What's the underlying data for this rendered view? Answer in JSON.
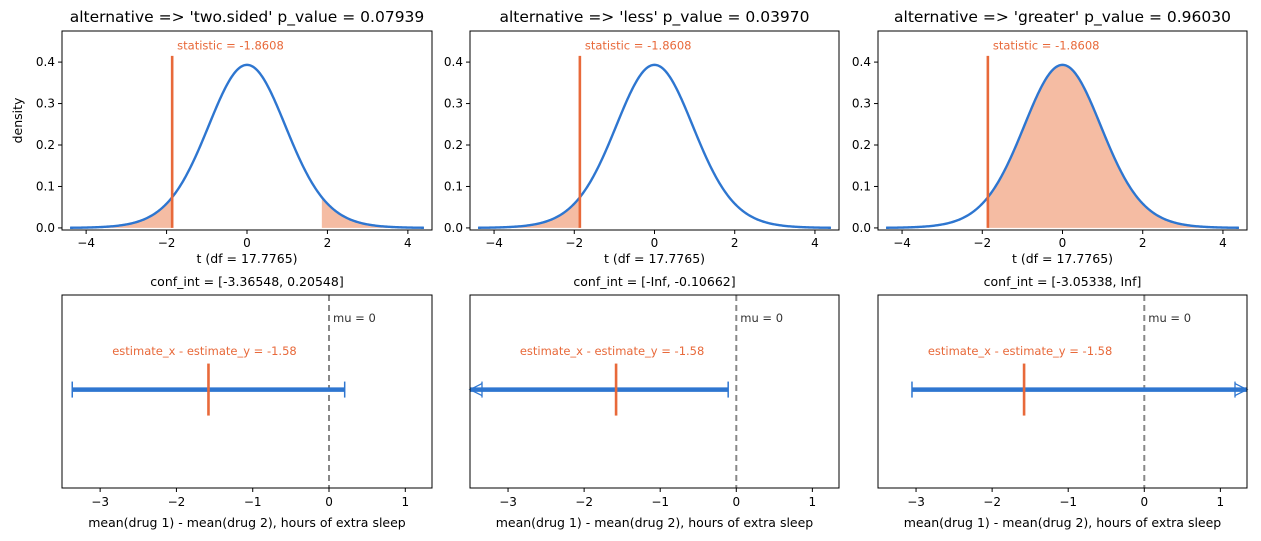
{
  "figure": {
    "colors": {
      "curve": "#2e76d0",
      "statistic": "#e8693a",
      "fill": "#f5bca3",
      "ci": "#2e76d0",
      "mu": "#888888",
      "axes": "#000000"
    }
  },
  "chart_data": [
    {
      "type": "line",
      "title": "alternative => 'two.sided'   p_value = 0.07939",
      "xlabel": "t   (df = 17.7765)",
      "ylabel": "density",
      "alternative": "two.sided",
      "df": 17.7765,
      "statistic": -1.8608,
      "statistic_label": "statistic = -1.8608",
      "xlim": [
        -4.6,
        4.6
      ],
      "ylim": [
        -0.005,
        0.475
      ],
      "curve_range": [
        -4.4,
        4.4
      ],
      "xticks": [
        -4,
        -2,
        0,
        2,
        4
      ],
      "yticks": [
        0.0,
        0.1,
        0.2,
        0.3,
        0.4
      ],
      "x_tick_labels": [
        "−4",
        "−2",
        "0",
        "2",
        "4"
      ],
      "y_tick_labels": [
        "0.0",
        "0.1",
        "0.2",
        "0.3",
        "0.4"
      ],
      "shade": [
        [
          -4.4,
          -1.8608
        ],
        [
          1.8608,
          4.4
        ]
      ]
    },
    {
      "type": "line",
      "title": "alternative => 'less'   p_value = 0.03970",
      "xlabel": "t   (df = 17.7765)",
      "ylabel": "",
      "alternative": "less",
      "df": 17.7765,
      "statistic": -1.8608,
      "statistic_label": "statistic = -1.8608",
      "xlim": [
        -4.6,
        4.6
      ],
      "ylim": [
        -0.005,
        0.475
      ],
      "curve_range": [
        -4.4,
        4.4
      ],
      "xticks": [
        -4,
        -2,
        0,
        2,
        4
      ],
      "yticks": [
        0.0,
        0.1,
        0.2,
        0.3,
        0.4
      ],
      "x_tick_labels": [
        "−4",
        "−2",
        "0",
        "2",
        "4"
      ],
      "y_tick_labels": [
        "0.0",
        "0.1",
        "0.2",
        "0.3",
        "0.4"
      ],
      "shade": [
        [
          -4.4,
          -1.8608
        ]
      ]
    },
    {
      "type": "line",
      "title": "alternative => 'greater'   p_value = 0.96030",
      "xlabel": "t   (df = 17.7765)",
      "ylabel": "",
      "alternative": "greater",
      "df": 17.7765,
      "statistic": -1.8608,
      "statistic_label": "statistic = -1.8608",
      "xlim": [
        -4.6,
        4.6
      ],
      "ylim": [
        -0.005,
        0.475
      ],
      "curve_range": [
        -4.4,
        4.4
      ],
      "xticks": [
        -4,
        -2,
        0,
        2,
        4
      ],
      "yticks": [
        0.0,
        0.1,
        0.2,
        0.3,
        0.4
      ],
      "x_tick_labels": [
        "−4",
        "−2",
        "0",
        "2",
        "4"
      ],
      "y_tick_labels": [
        "0.0",
        "0.1",
        "0.2",
        "0.3",
        "0.4"
      ],
      "shade": [
        [
          -1.8608,
          4.4
        ]
      ]
    },
    {
      "type": "interval",
      "title": "conf_int = [-3.36548, 0.20548]",
      "xlabel": "mean(drug 1) - mean(drug 2), hours of extra sleep",
      "xlim": [
        -3.5,
        1.35
      ],
      "xticks": [
        -3,
        -2,
        -1,
        0,
        1
      ],
      "x_tick_labels": [
        "−3",
        "−2",
        "−1",
        "0",
        "1"
      ],
      "conf_int": [
        -3.36548,
        0.20548
      ],
      "lower_infinite": false,
      "upper_infinite": false,
      "estimate": -1.58,
      "estimate_label": "estimate_x - estimate_y = -1.58",
      "mu": 0,
      "mu_label": "mu = 0"
    },
    {
      "type": "interval",
      "title": "conf_int = [-Inf, -0.10662]",
      "xlabel": "mean(drug 1) - mean(drug 2), hours of extra sleep",
      "xlim": [
        -3.5,
        1.35
      ],
      "xticks": [
        -3,
        -2,
        -1,
        0,
        1
      ],
      "x_tick_labels": [
        "−3",
        "−2",
        "−1",
        "0",
        "1"
      ],
      "conf_int": [
        -3.5,
        -0.10662
      ],
      "lower_infinite": true,
      "upper_infinite": false,
      "estimate": -1.58,
      "estimate_label": "estimate_x - estimate_y = -1.58",
      "mu": 0,
      "mu_label": "mu = 0"
    },
    {
      "type": "interval",
      "title": "conf_int = [-3.05338, Inf]",
      "xlabel": "mean(drug 1) - mean(drug 2), hours of extra sleep",
      "xlim": [
        -3.5,
        1.35
      ],
      "xticks": [
        -3,
        -2,
        -1,
        0,
        1
      ],
      "x_tick_labels": [
        "−3",
        "−2",
        "−1",
        "0",
        "1"
      ],
      "conf_int": [
        -3.05338,
        1.35
      ],
      "lower_infinite": false,
      "upper_infinite": true,
      "estimate": -1.58,
      "estimate_label": "estimate_x - estimate_y = -1.58",
      "mu": 0,
      "mu_label": "mu = 0"
    }
  ]
}
